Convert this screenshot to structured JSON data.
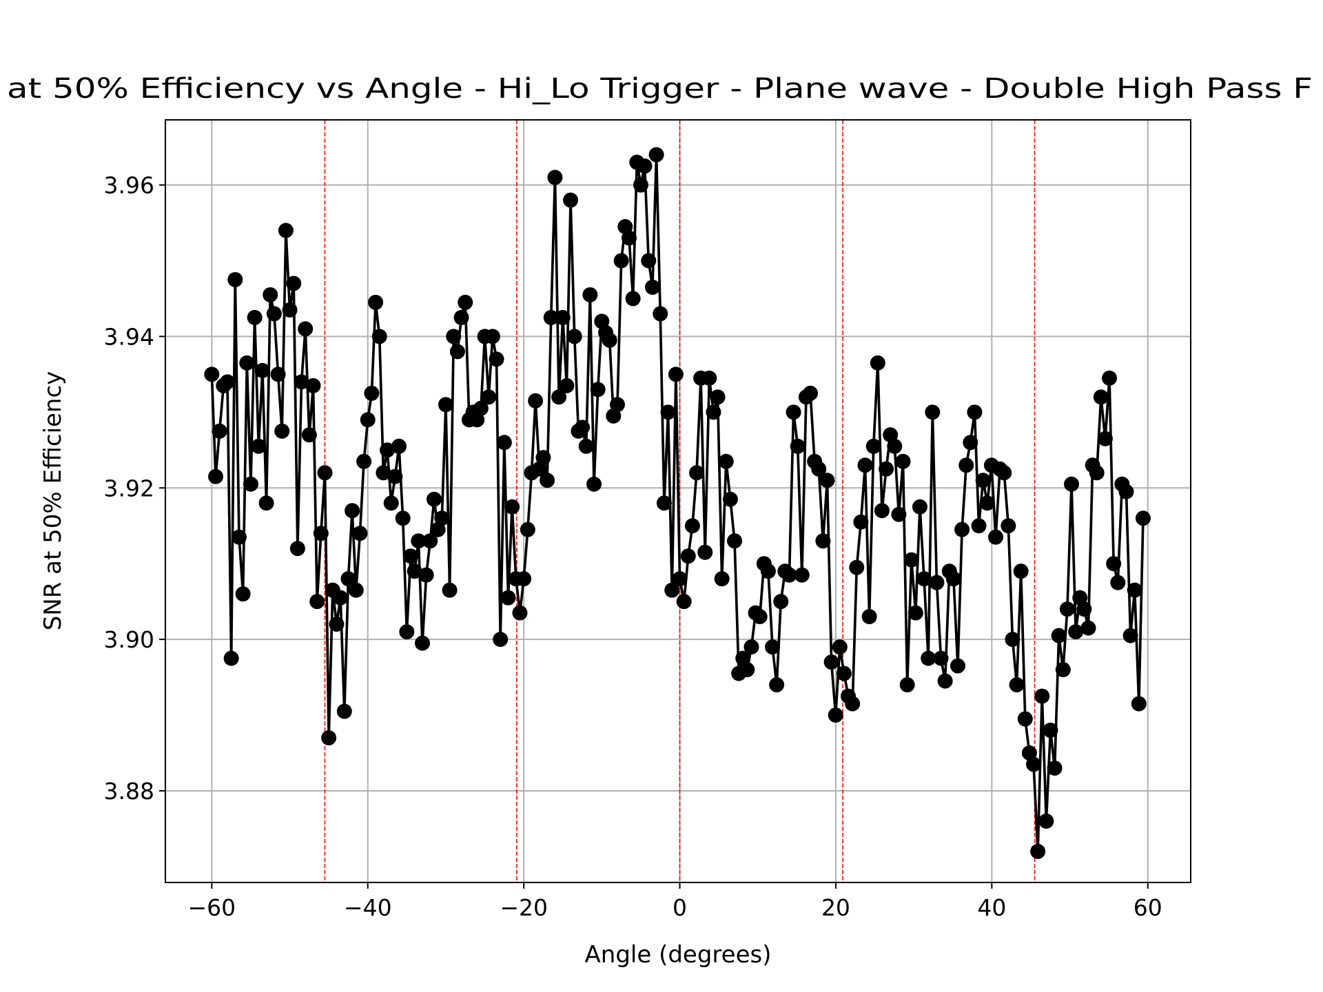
{
  "chart_data": {
    "type": "line",
    "title": "at 50% Efficiency vs Angle - Hi_Lo Trigger - Plane wave - Double High Pass F",
    "x_label": "Angle (degrees)",
    "y_label": "SNR at 50% Efficiency",
    "xlim": [
      -65.95,
      65.5
    ],
    "ylim": [
      3.8679,
      3.9686
    ],
    "xticks": [
      {
        "value": -60,
        "label": "−60"
      },
      {
        "value": -40,
        "label": "−40"
      },
      {
        "value": -20,
        "label": "−20"
      },
      0,
      20,
      40,
      60
    ],
    "yticks": [
      3.88,
      {
        "value": 3.9,
        "label": "3.90"
      },
      3.92,
      3.94,
      3.96
    ],
    "grid": true,
    "color": "#000000",
    "vlines": [
      -45.5,
      -20.9,
      0,
      20.9,
      45.5
    ],
    "vline_color": "#ff0000",
    "x": [
      -60,
      -59.5,
      -59,
      -58.5,
      -58,
      -57.5,
      -57,
      -56.5,
      -56,
      -55.5,
      -55,
      -54.5,
      -54,
      -53.5,
      -53,
      -52.5,
      -52,
      -51.5,
      -51,
      -50.5,
      -50,
      -49.5,
      -49,
      -48.5,
      -48,
      -47.5,
      -47,
      -46.5,
      -46,
      -45.5,
      -45,
      -44.5,
      -44,
      -43.5,
      -43,
      -42.5,
      -42,
      -41.5,
      -41,
      -40.5,
      -40,
      -39.5,
      -39,
      -38.5,
      -38,
      -37.5,
      -37,
      -36.5,
      -36,
      -35.5,
      -35,
      -34.5,
      -34,
      -33.5,
      -33,
      -32.5,
      -32,
      -31.5,
      -31,
      -30.5,
      -30,
      -29.5,
      -29,
      -28.5,
      -28,
      -27.5,
      -27,
      -26.5,
      -26,
      -25.5,
      -25,
      -24.5,
      -24,
      -23.5,
      -23,
      -22.5,
      -22,
      -21.5,
      -21,
      -20.5,
      -20,
      -19.5,
      -19,
      -18.5,
      -18,
      -17.5,
      -17,
      -16.5,
      -16,
      -15.5,
      -15,
      -14.5,
      -14,
      -13.5,
      -13,
      -12.5,
      -12,
      -11.5,
      -11,
      -10.5,
      -10,
      -9.5,
      -9,
      -8.5,
      -8,
      -7.5,
      -7,
      -6.5,
      -6,
      -5.5,
      -5,
      -4.5,
      -4,
      -3.5,
      -3,
      -2.5,
      -2,
      -1.5,
      -1,
      -0.5,
      0,
      0.54,
      1.08,
      1.62,
      2.16,
      2.7,
      3.24,
      3.78,
      4.32,
      4.86,
      5.4,
      5.94,
      6.48,
      7.02,
      7.56,
      8.1,
      8.64,
      9.18,
      9.72,
      10.26,
      10.8,
      11.34,
      11.88,
      12.42,
      12.96,
      13.5,
      14.04,
      14.58,
      15.12,
      15.66,
      16.2,
      16.74,
      17.28,
      17.82,
      18.36,
      18.9,
      19.44,
      19.98,
      20.52,
      21.06,
      21.6,
      22.14,
      22.68,
      23.22,
      23.76,
      24.3,
      24.84,
      25.38,
      25.92,
      26.46,
      27,
      27.54,
      28.08,
      28.62,
      29.16,
      29.7,
      30.24,
      30.78,
      31.32,
      31.86,
      32.4,
      32.94,
      33.48,
      34.02,
      34.56,
      35.1,
      35.64,
      36.18,
      36.72,
      37.26,
      37.8,
      38.34,
      38.88,
      39.42,
      39.96,
      40.5,
      41.04,
      41.58,
      42.12,
      42.66,
      43.2,
      43.74,
      44.28,
      44.82,
      45.36,
      45.9,
      46.44,
      46.98,
      47.52,
      48.06,
      48.6,
      49.14,
      49.68,
      50.22,
      50.76,
      51.3,
      51.84,
      52.38,
      52.92,
      53.46,
      54,
      54.54,
      55.08,
      55.62,
      56.16,
      56.7,
      57.24,
      57.78,
      58.32,
      58.86,
      59.4
    ],
    "values": [
      3.935,
      3.9215,
      3.9275,
      3.9335,
      3.934,
      3.8975,
      3.9475,
      3.9135,
      3.906,
      3.9365,
      3.9205,
      3.9425,
      3.9255,
      3.9355,
      3.918,
      3.9455,
      3.943,
      3.935,
      3.9275,
      3.954,
      3.9435,
      3.947,
      3.912,
      3.934,
      3.941,
      3.927,
      3.9335,
      3.905,
      3.914,
      3.922,
      3.887,
      3.9065,
      3.902,
      3.9055,
      3.8905,
      3.908,
      3.917,
      3.9065,
      3.914,
      3.9235,
      3.929,
      3.9325,
      3.9445,
      3.94,
      3.922,
      3.925,
      3.918,
      3.9215,
      3.9255,
      3.916,
      3.901,
      3.911,
      3.909,
      3.913,
      3.8995,
      3.9085,
      3.913,
      3.9185,
      3.9145,
      3.916,
      3.931,
      3.9065,
      3.94,
      3.938,
      3.9425,
      3.9445,
      3.929,
      3.93,
      3.929,
      3.9305,
      3.94,
      3.932,
      3.94,
      3.937,
      3.9,
      3.926,
      3.9055,
      3.9175,
      3.908,
      3.9035,
      3.908,
      3.9145,
      3.922,
      3.9315,
      3.9225,
      3.924,
      3.921,
      3.9425,
      3.961,
      3.932,
      3.9425,
      3.9335,
      3.958,
      3.94,
      3.9275,
      3.928,
      3.9255,
      3.9455,
      3.9205,
      3.933,
      3.942,
      3.9405,
      3.9395,
      3.9295,
      3.931,
      3.95,
      3.9545,
      3.953,
      3.945,
      3.963,
      3.96,
      3.9625,
      3.95,
      3.9465,
      3.964,
      3.943,
      3.918,
      3.93,
      3.9065,
      3.935,
      3.908,
      3.905,
      3.911,
      3.915,
      3.922,
      3.9345,
      3.9115,
      3.9345,
      3.93,
      3.932,
      3.908,
      3.9235,
      3.9185,
      3.913,
      3.8955,
      3.8975,
      3.896,
      3.899,
      3.9035,
      3.903,
      3.91,
      3.909,
      3.899,
      3.894,
      3.905,
      3.909,
      3.9085,
      3.93,
      3.9255,
      3.9085,
      3.932,
      3.9325,
      3.9235,
      3.9225,
      3.913,
      3.921,
      3.897,
      3.89,
      3.899,
      3.8955,
      3.8925,
      3.8915,
      3.9095,
      3.9155,
      3.923,
      3.903,
      3.9255,
      3.9365,
      3.917,
      3.9225,
      3.927,
      3.9255,
      3.9165,
      3.9235,
      3.894,
      3.9105,
      3.9035,
      3.9175,
      3.908,
      3.8975,
      3.93,
      3.9075,
      3.8975,
      3.8945,
      3.909,
      3.908,
      3.8965,
      3.9145,
      3.923,
      3.926,
      3.93,
      3.915,
      3.921,
      3.918,
      3.923,
      3.9135,
      3.9225,
      3.922,
      3.915,
      3.9,
      3.894,
      3.909,
      3.8895,
      3.885,
      3.8835,
      3.872,
      3.8925,
      3.876,
      3.888,
      3.883,
      3.9005,
      3.896,
      3.904,
      3.9205,
      3.901,
      3.9055,
      3.904,
      3.9015,
      3.923,
      3.922,
      3.932,
      3.9265,
      3.9345,
      3.91,
      3.9075,
      3.9205,
      3.9195,
      3.9005,
      3.9065,
      3.8915,
      3.916
    ]
  }
}
